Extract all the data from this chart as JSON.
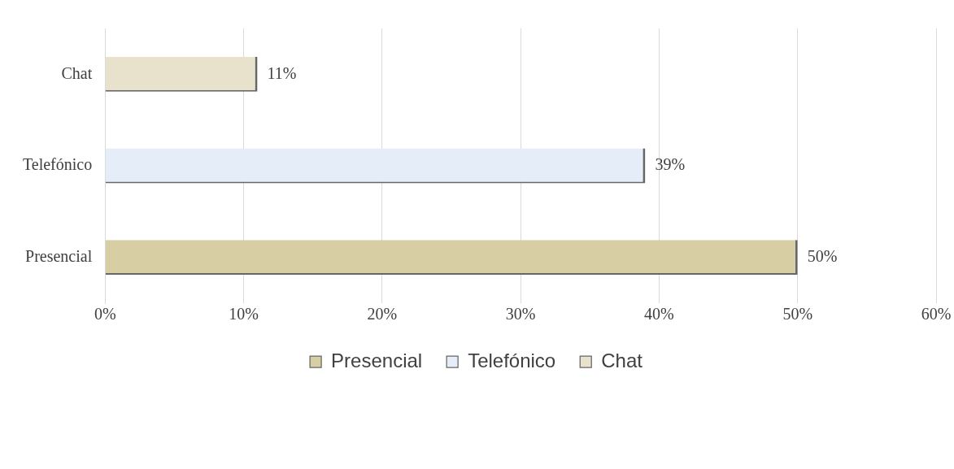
{
  "chart_data": {
    "type": "bar",
    "orientation": "horizontal",
    "stacked": true,
    "categories": [
      "Chat",
      "Telefónico",
      "Presencial"
    ],
    "series": [
      {
        "name": "Presencial",
        "color": "#d8cea3",
        "values": [
          null,
          null,
          50
        ],
        "value_labels": [
          null,
          null,
          "50%"
        ]
      },
      {
        "name": "Telefónico",
        "color": "#e4edf8",
        "values": [
          null,
          39,
          null
        ],
        "value_labels": [
          null,
          "39%",
          null
        ]
      },
      {
        "name": "Chat",
        "color": "#e8e1cc",
        "values": [
          11,
          null,
          null
        ],
        "value_labels": [
          "11%",
          null,
          null
        ]
      }
    ],
    "xlim": [
      0,
      60
    ],
    "xticks": [
      {
        "value": 0,
        "label": "0%"
      },
      {
        "value": 10,
        "label": "10%"
      },
      {
        "value": 20,
        "label": "20%"
      },
      {
        "value": 30,
        "label": "30%"
      },
      {
        "value": 40,
        "label": "40%"
      },
      {
        "value": 50,
        "label": "50%"
      },
      {
        "value": 60,
        "label": "60%"
      }
    ],
    "grid": "x",
    "legend": "bottom"
  }
}
